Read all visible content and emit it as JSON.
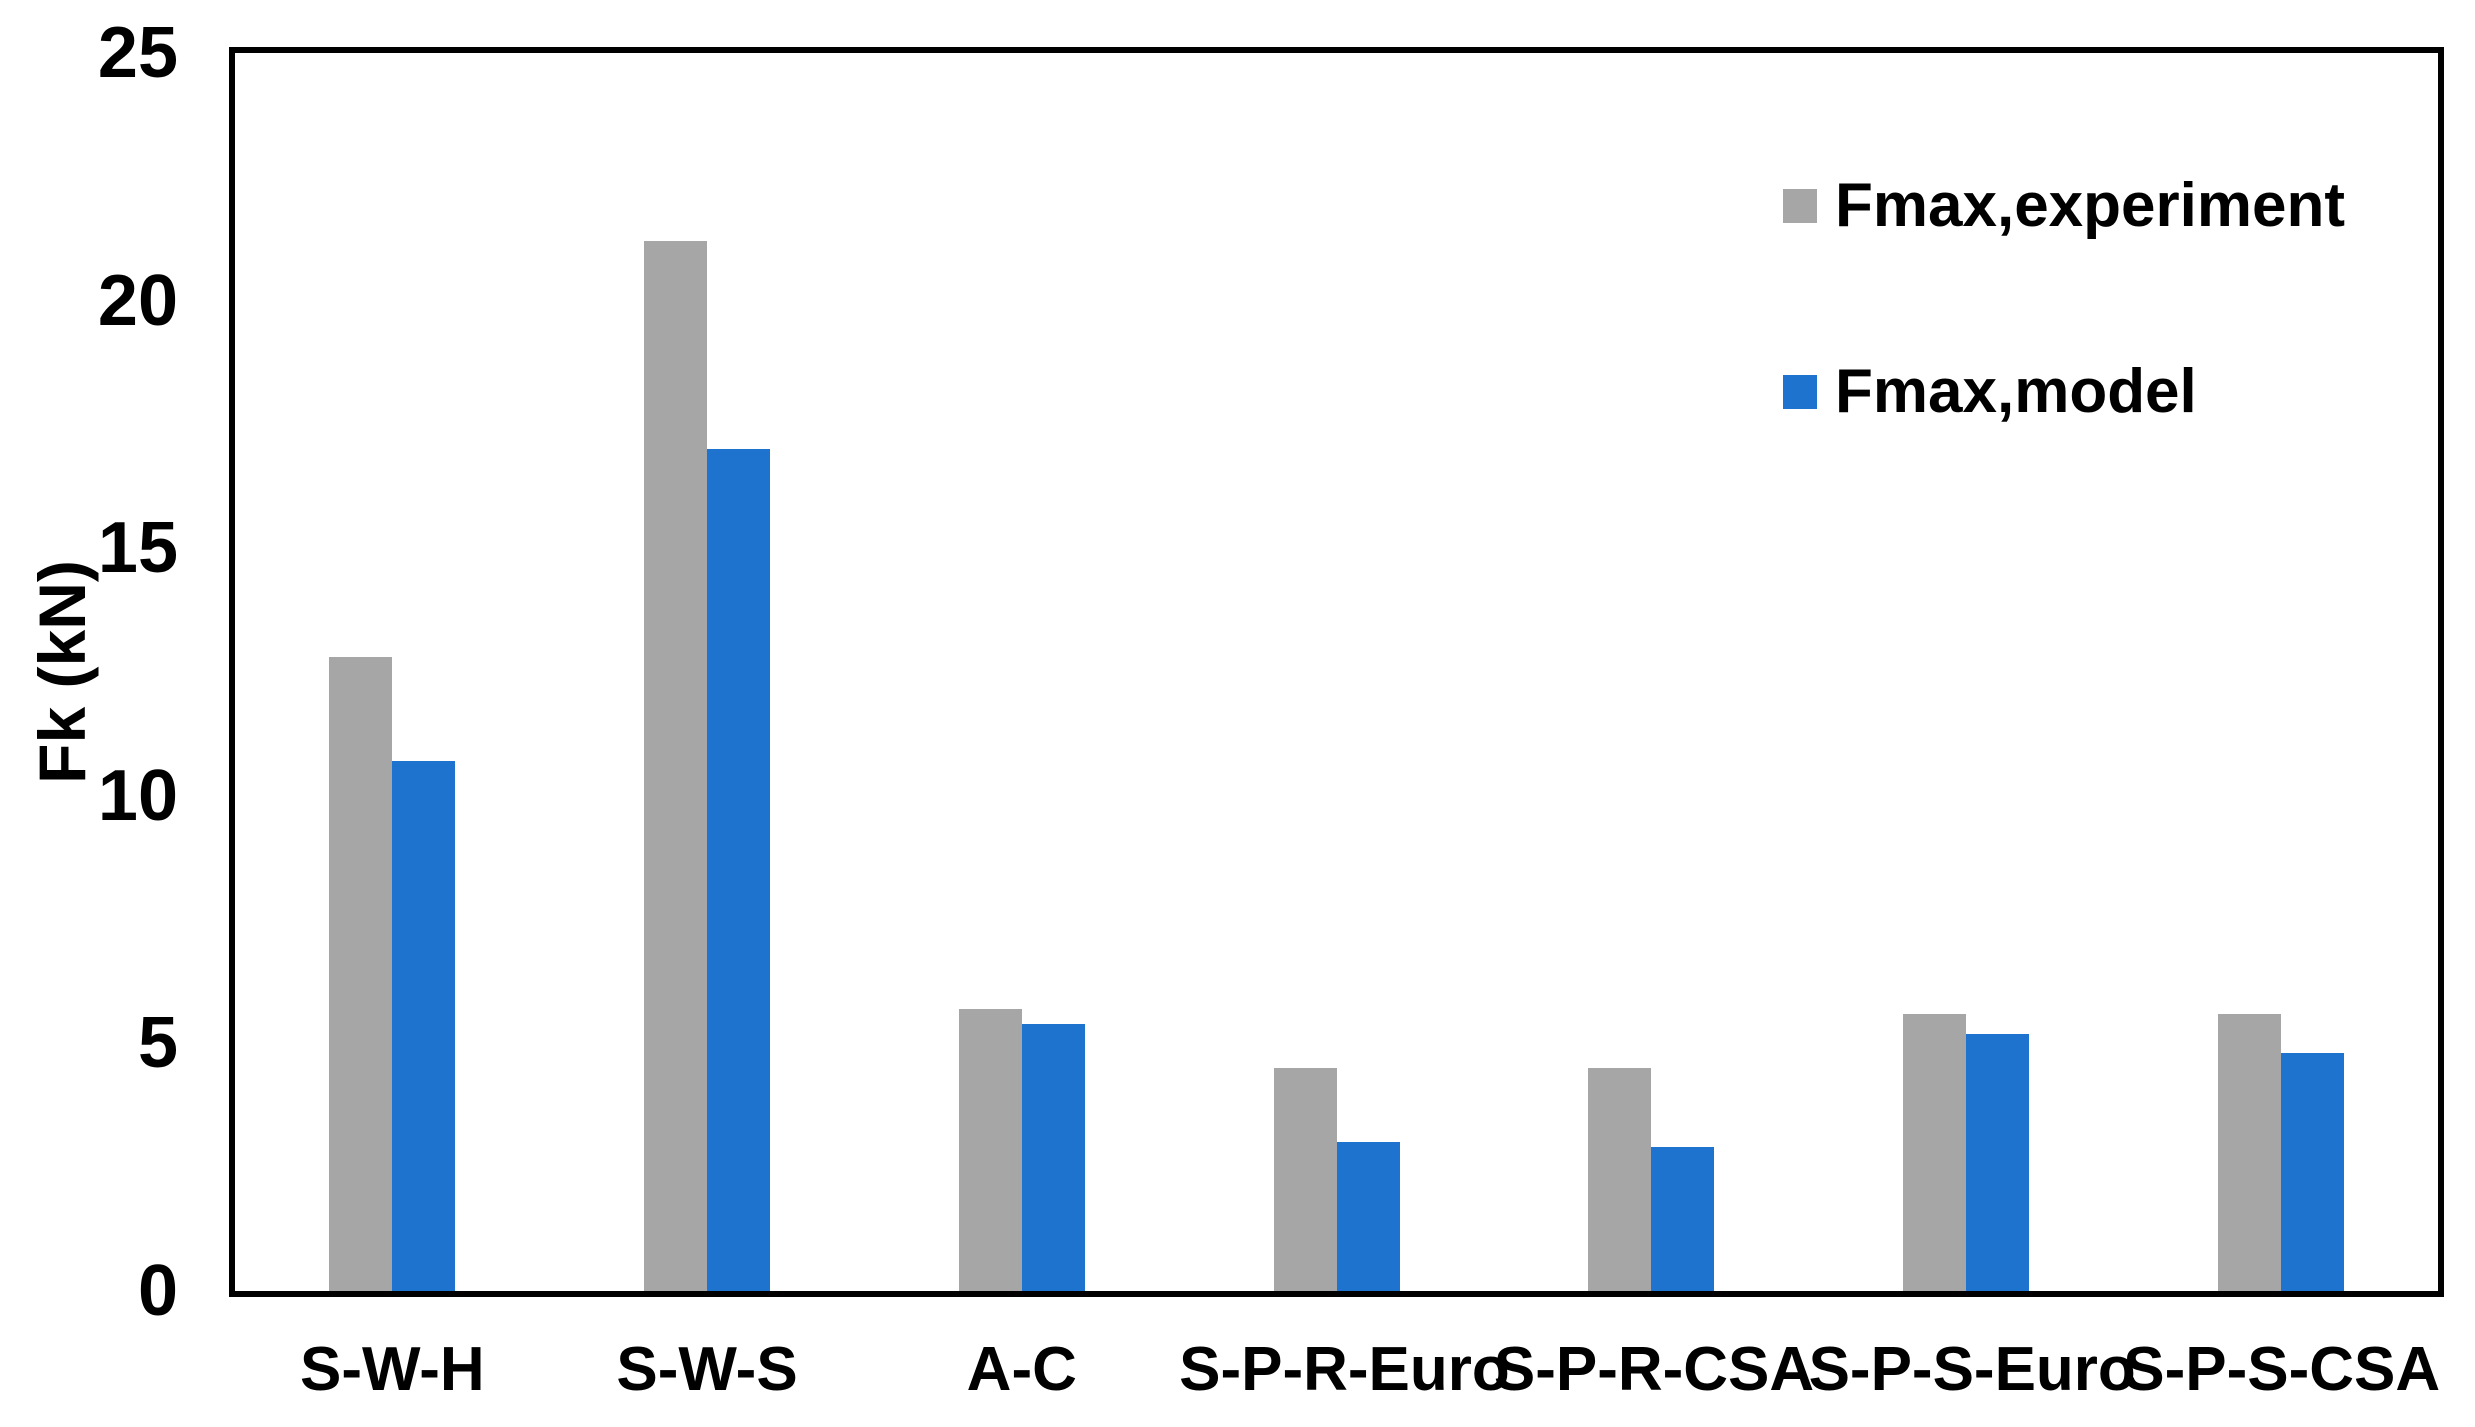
{
  "figure": {
    "background": "#FFFFFF",
    "border_color": "#000000",
    "text_color": "#000000"
  },
  "chart_data": {
    "type": "bar",
    "title": "",
    "xlabel": "",
    "ylabel": "Fk (kN)",
    "categories": [
      "S-W-H",
      "S-W-S",
      "A-C",
      "S-P-R-Euro",
      "S-P-R-CSA",
      "S-P-S-Euro",
      "S-P-S-CSA"
    ],
    "series": [
      {
        "name": "Fmax,experiment",
        "color": "#A6A6A6",
        "values": [
          12.8,
          21.2,
          5.7,
          4.5,
          4.5,
          5.6,
          5.6
        ]
      },
      {
        "name": "Fmax,model",
        "color": "#1E73CE",
        "values": [
          10.7,
          17.0,
          5.4,
          3.0,
          2.9,
          5.2,
          4.8
        ]
      }
    ],
    "ylim": [
      0,
      25
    ],
    "yticks": [
      0,
      5,
      10,
      15,
      20,
      25
    ],
    "grid": false,
    "legend_position": "top-right-inside"
  }
}
